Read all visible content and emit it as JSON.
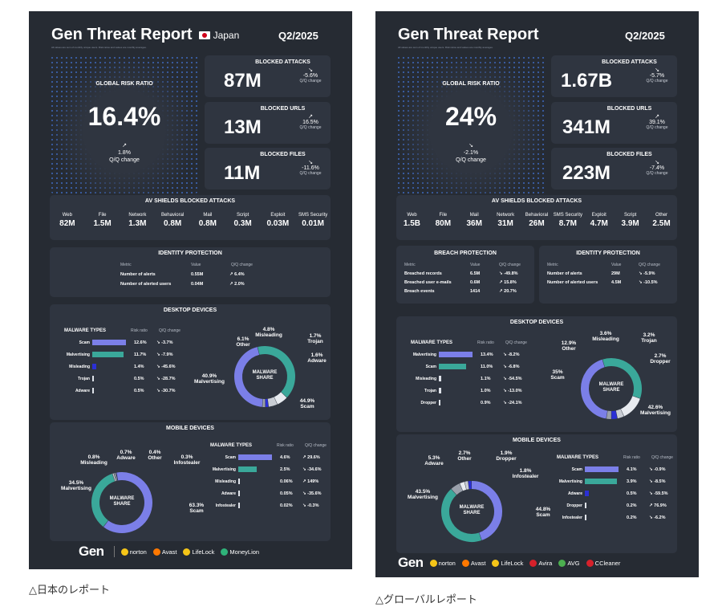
{
  "japan": {
    "title": "Gen Threat Report",
    "country": "Japan",
    "quarter": "Q2/2025",
    "subtitle": "All values are sum of monthly unique users. Risk ratios and values are monthly averages.",
    "risk": {
      "label": "GLOBAL RISK RATIO",
      "value": "16.4%",
      "change": "1.8%",
      "change_label": "Q/Q change"
    },
    "stats": [
      {
        "label": "BLOCKED ATTACKS",
        "value": "87M",
        "change": "-5.6%",
        "change_label": "Q/Q change"
      },
      {
        "label": "BLOCKED URLS",
        "value": "13M",
        "change": "16.5%",
        "change_label": "Q/Q change"
      },
      {
        "label": "BLOCKED FILES",
        "value": "11M",
        "change": "-11.6%",
        "change_label": "Q/Q change"
      }
    ],
    "av": {
      "title": "AV SHIELDS BLOCKED ATTACKS",
      "items": [
        {
          "name": "Web",
          "value": "82M"
        },
        {
          "name": "File",
          "value": "1.5M"
        },
        {
          "name": "Network",
          "value": "1.3M"
        },
        {
          "name": "Behavioral",
          "value": "0.8M"
        },
        {
          "name": "Mail",
          "value": "0.8M"
        },
        {
          "name": "Script",
          "value": "0.3M"
        },
        {
          "name": "Exploit",
          "value": "0.03M"
        },
        {
          "name": "SMS Security",
          "value": "0.01M"
        }
      ]
    },
    "identity": {
      "title": "IDENTITY PROTECTION",
      "headers": [
        "Metric",
        "Value",
        "Q/Q change"
      ],
      "rows": [
        {
          "metric": "Number of alerts",
          "value": "0.55M",
          "change": "6.4%"
        },
        {
          "metric": "Number of alerted users",
          "value": "0.04M",
          "change": "2.0%"
        }
      ]
    },
    "desktop": {
      "title": "DESKTOP DEVICES",
      "headers": [
        "MALWARE TYPES",
        "Risk ratio",
        "Q/Q change"
      ],
      "rows": [
        {
          "name": "Scam",
          "ratio": "12.6%",
          "ratio_num": 12.6,
          "change": "-3.7%",
          "color": "#7b7fe8"
        },
        {
          "name": "Malvertising",
          "ratio": "11.7%",
          "ratio_num": 11.7,
          "change": "-7.9%",
          "color": "#3aa89a"
        },
        {
          "name": "Misleading",
          "ratio": "1.4%",
          "ratio_num": 1.4,
          "change": "-45.6%",
          "color": "#2b2fd6"
        },
        {
          "name": "Trojan",
          "ratio": "0.5%",
          "ratio_num": 0.5,
          "change": "-28.7%",
          "color": "#dfe3ea"
        },
        {
          "name": "Adware",
          "ratio": "0.5%",
          "ratio_num": 0.5,
          "change": "-30.7%",
          "color": "#dfe3ea"
        }
      ],
      "donut_center": "MALWARE SHARE",
      "donut": [
        {
          "pct": "44.9%",
          "name": "Scam",
          "value": 44.9,
          "color": "#7b7fe8"
        },
        {
          "pct": "40.9%",
          "name": "Malvertising",
          "value": 40.9,
          "color": "#3aa89a"
        },
        {
          "pct": "6.1%",
          "name": "Other",
          "value": 6.1,
          "color": "#e8ebf0"
        },
        {
          "pct": "4.8%",
          "name": "Misleading",
          "value": 4.8,
          "color": "#c9cdd4"
        },
        {
          "pct": "1.7%",
          "name": "Trojan",
          "value": 1.7,
          "color": "#2b2fd6"
        },
        {
          "pct": "1.6%",
          "name": "Adware",
          "value": 1.6,
          "color": "#9aa0ab"
        }
      ]
    },
    "mobile": {
      "title": "MOBILE DEVICES",
      "headers": [
        "MALWARE TYPES",
        "Risk ratio",
        "Q/Q change"
      ],
      "rows": [
        {
          "name": "Scam",
          "ratio": "4.6%",
          "ratio_num": 4.6,
          "change": "29.6%",
          "color": "#7b7fe8"
        },
        {
          "name": "Malvertising",
          "ratio": "2.5%",
          "ratio_num": 2.5,
          "change": "-34.6%",
          "color": "#3aa89a"
        },
        {
          "name": "Misleading",
          "ratio": "0.06%",
          "ratio_num": 0.06,
          "change": "149%",
          "color": "#dfe3ea"
        },
        {
          "name": "Adware",
          "ratio": "0.05%",
          "ratio_num": 0.05,
          "change": "-35.6%",
          "color": "#dfe3ea"
        },
        {
          "name": "Infostealer",
          "ratio": "0.02%",
          "ratio_num": 0.02,
          "change": "-0.3%",
          "color": "#dfe3ea"
        }
      ],
      "donut_center": "MALWARE SHARE",
      "donut": [
        {
          "pct": "63.3%",
          "name": "Scam",
          "value": 63.3,
          "color": "#7b7fe8"
        },
        {
          "pct": "34.5%",
          "name": "Malvertising",
          "value": 34.5,
          "color": "#3aa89a"
        },
        {
          "pct": "0.8%",
          "name": "Misleading",
          "value": 0.8,
          "color": "#c9cdd4"
        },
        {
          "pct": "0.7%",
          "name": "Adware",
          "value": 0.7,
          "color": "#9aa0ab"
        },
        {
          "pct": "0.4%",
          "name": "Other",
          "value": 0.4,
          "color": "#e8ebf0"
        },
        {
          "pct": "0.3%",
          "name": "Infostealer",
          "value": 0.3,
          "color": "#2b2fd6"
        }
      ]
    },
    "brands": [
      "Gen",
      "norton",
      "Avast",
      "LifeLock",
      "MoneyLion"
    ],
    "caption": "△日本のレポート"
  },
  "global": {
    "title": "Gen Threat Report",
    "quarter": "Q2/2025",
    "subtitle": "All values are sum of monthly unique users. Risk ratios and values are monthly averages.",
    "risk": {
      "label": "GLOBAL RISK RATIO",
      "value": "24%",
      "change": "-2.1%",
      "change_label": "Q/Q change"
    },
    "stats": [
      {
        "label": "BLOCKED ATTACKS",
        "value": "1.67B",
        "change": "-5.7%",
        "change_label": "Q/Q change"
      },
      {
        "label": "BLOCKED URLS",
        "value": "341M",
        "change": "39.1%",
        "change_label": "Q/Q change"
      },
      {
        "label": "BLOCKED FILES",
        "value": "223M",
        "change": "-7.4%",
        "change_label": "Q/Q change"
      }
    ],
    "av": {
      "title": "AV SHIELDS BLOCKED ATTACKS",
      "items": [
        {
          "name": "Web",
          "value": "1.5B"
        },
        {
          "name": "File",
          "value": "80M"
        },
        {
          "name": "Mail",
          "value": "36M"
        },
        {
          "name": "Network",
          "value": "31M"
        },
        {
          "name": "Behavioral",
          "value": "26M"
        },
        {
          "name": "SMS Security",
          "value": "8.7M"
        },
        {
          "name": "Exploit",
          "value": "4.7M"
        },
        {
          "name": "Script",
          "value": "3.9M"
        },
        {
          "name": "Other",
          "value": "2.5M"
        }
      ]
    },
    "breach": {
      "title": "BREACH PROTECTION",
      "headers": [
        "Metric",
        "Value",
        "Q/Q change"
      ],
      "rows": [
        {
          "metric": "Breached records",
          "value": "6.5M",
          "change": "-49.8%"
        },
        {
          "metric": "Breached user e-mails",
          "value": "0.6M",
          "change": "15.8%"
        },
        {
          "metric": "Breach events",
          "value": "1414",
          "change": "20.7%"
        }
      ]
    },
    "identity": {
      "title": "IDENTITY PROTECTION",
      "headers": [
        "Metric",
        "Value",
        "Q/Q change"
      ],
      "rows": [
        {
          "metric": "Number of alerts",
          "value": "29M",
          "change": "-5.9%"
        },
        {
          "metric": "Number of alerted users",
          "value": "4.5M",
          "change": "-10.5%"
        }
      ]
    },
    "desktop": {
      "title": "DESKTOP DEVICES",
      "headers": [
        "MALWARE TYPES",
        "Risk ratio",
        "Q/Q change"
      ],
      "rows": [
        {
          "name": "Malvertising",
          "ratio": "13.4%",
          "ratio_num": 13.4,
          "change": "-8.2%",
          "color": "#7b7fe8"
        },
        {
          "name": "Scam",
          "ratio": "11.0%",
          "ratio_num": 11.0,
          "change": "-6.8%",
          "color": "#3aa89a"
        },
        {
          "name": "Misleading",
          "ratio": "1.1%",
          "ratio_num": 1.1,
          "change": "-54.5%",
          "color": "#dfe3ea"
        },
        {
          "name": "Trojan",
          "ratio": "1.0%",
          "ratio_num": 1.0,
          "change": "-13.0%",
          "color": "#dfe3ea"
        },
        {
          "name": "Dropper",
          "ratio": "0.9%",
          "ratio_num": 0.9,
          "change": "-24.1%",
          "color": "#dfe3ea"
        }
      ],
      "donut_center": "MALWARE SHARE",
      "donut": [
        {
          "pct": "42.6%",
          "name": "Malvertising",
          "value": 42.6,
          "color": "#7b7fe8"
        },
        {
          "pct": "35%",
          "name": "Scam",
          "value": 35,
          "color": "#3aa89a"
        },
        {
          "pct": "12.9%",
          "name": "Other",
          "value": 12.9,
          "color": "#e8ebf0"
        },
        {
          "pct": "3.6%",
          "name": "Misleading",
          "value": 3.6,
          "color": "#c9cdd4"
        },
        {
          "pct": "3.2%",
          "name": "Trojan",
          "value": 3.2,
          "color": "#2b2fd6"
        },
        {
          "pct": "2.7%",
          "name": "Dropper",
          "value": 2.7,
          "color": "#9aa0ab"
        }
      ]
    },
    "mobile": {
      "title": "MOBILE DEVICES",
      "headers": [
        "MALWARE TYPES",
        "Risk ratio",
        "Q/Q change"
      ],
      "rows": [
        {
          "name": "Scam",
          "ratio": "4.1%",
          "ratio_num": 4.1,
          "change": "-0.9%",
          "color": "#7b7fe8"
        },
        {
          "name": "Malvertising",
          "ratio": "3.9%",
          "ratio_num": 3.9,
          "change": "-8.5%",
          "color": "#3aa89a"
        },
        {
          "name": "Adware",
          "ratio": "0.5%",
          "ratio_num": 0.5,
          "change": "-59.5%",
          "color": "#2b2fd6"
        },
        {
          "name": "Dropper",
          "ratio": "0.2%",
          "ratio_num": 0.2,
          "change": "76.9%",
          "color": "#dfe3ea"
        },
        {
          "name": "Infostealer",
          "ratio": "0.2%",
          "ratio_num": 0.2,
          "change": "-6.2%",
          "color": "#dfe3ea"
        }
      ],
      "donut_center": "MALWARE SHARE",
      "donut": [
        {
          "pct": "44.8%",
          "name": "Scam",
          "value": 44.8,
          "color": "#7b7fe8"
        },
        {
          "pct": "43.5%",
          "name": "Malvertising",
          "value": 43.5,
          "color": "#3aa89a"
        },
        {
          "pct": "5.3%",
          "name": "Adware",
          "value": 5.3,
          "color": "#9aa0ab"
        },
        {
          "pct": "2.7%",
          "name": "Other",
          "value": 2.7,
          "color": "#e8ebf0"
        },
        {
          "pct": "1.9%",
          "name": "Dropper",
          "value": 1.9,
          "color": "#c9cdd4"
        },
        {
          "pct": "1.8%",
          "name": "Infostealer",
          "value": 1.8,
          "color": "#2b2fd6"
        }
      ]
    },
    "brands": [
      "Gen",
      "norton",
      "Avast",
      "LifeLock",
      "Avira",
      "AVG",
      "CCleaner"
    ],
    "caption": "△グローバルレポート"
  },
  "colors": {
    "background": "#262b33",
    "card": "#2f3540",
    "scam": "#7b7fe8",
    "malvertising": "#3aa89a",
    "accent": "#2b2fd6"
  }
}
